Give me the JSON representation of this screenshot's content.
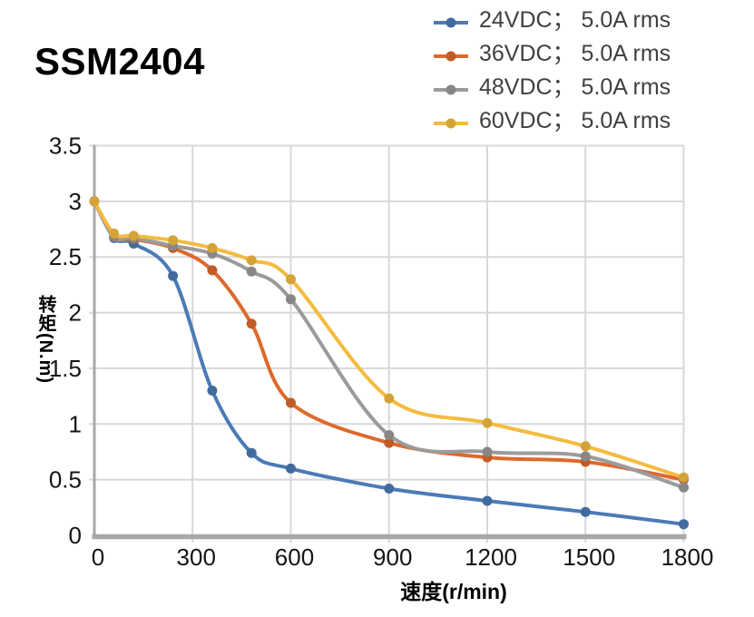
{
  "title": "SSM2404",
  "chart_data": {
    "type": "line",
    "title": "SSM2404",
    "xlabel": "速度(r/min)",
    "ylabel": "转矩(N.m)",
    "x": [
      0,
      60,
      120,
      240,
      360,
      480,
      600,
      900,
      1200,
      1500,
      1800
    ],
    "series": [
      {
        "name": "24VDC； 5.0A rms",
        "color": "#4B7BB7",
        "values": [
          3.0,
          2.67,
          2.62,
          2.33,
          1.3,
          0.74,
          0.6,
          0.42,
          0.31,
          0.21,
          0.1
        ]
      },
      {
        "name": "36VDC； 5.0A rms",
        "color": "#DC6A2D",
        "values": [
          3.0,
          2.68,
          2.66,
          2.58,
          2.38,
          1.9,
          1.19,
          0.83,
          0.7,
          0.66,
          0.5
        ]
      },
      {
        "name": "48VDC； 5.0A rms",
        "color": "#9B9B9B",
        "values": [
          3.0,
          2.68,
          2.67,
          2.6,
          2.53,
          2.37,
          2.12,
          0.9,
          0.75,
          0.71,
          0.43
        ]
      },
      {
        "name": "60VDC； 5.0A rms",
        "color": "#F4BB40",
        "values": [
          3.0,
          2.71,
          2.69,
          2.65,
          2.58,
          2.47,
          2.3,
          1.23,
          1.01,
          0.8,
          0.52
        ]
      }
    ],
    "xlim": [
      0,
      1800
    ],
    "ylim": [
      0,
      3.5
    ],
    "x_ticks": [
      0,
      300,
      600,
      900,
      1200,
      1500,
      1800
    ],
    "y_ticks": [
      0,
      0.5,
      1,
      1.5,
      2,
      2.5,
      3,
      3.5
    ],
    "grid": true,
    "legend_position": "top-right",
    "line_style": "smooth",
    "colors": {
      "gridline": "#D8D8D8",
      "axis": "#A8A8A8",
      "tick_text": "#151515",
      "legend_text": "#404040"
    }
  }
}
